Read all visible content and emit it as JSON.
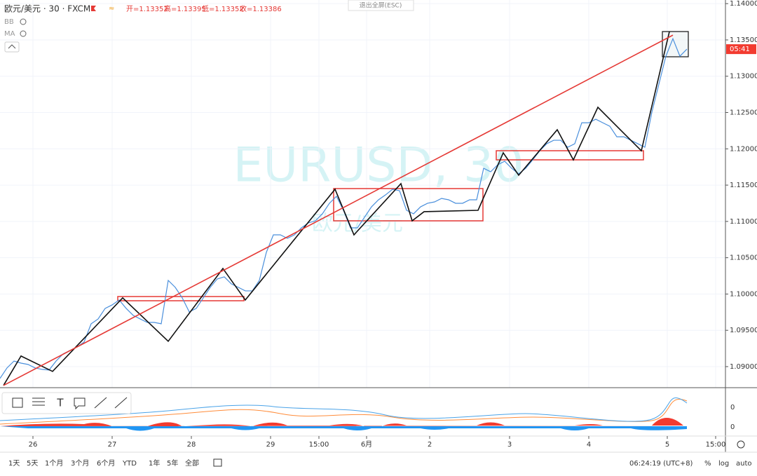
{
  "header": {
    "symbol": "欧元/美元 · 30 · FXCM",
    "ohlc": [
      "开=1.13352",
      "高=1.13395",
      "低=1.13352",
      "收=1.13386"
    ],
    "indicators": [
      "BB",
      "MA"
    ],
    "exit_fullscreen": "退出全屏(ESC)"
  },
  "watermark": {
    "line1": "EURUSD, 30",
    "line2": "欧元/美元"
  },
  "chart_data": {
    "type": "line",
    "series": [
      {
        "name": "price",
        "color": "#4a8fdc",
        "values": [
          1.08837,
          1.08982,
          1.09077,
          1.09048,
          1.0903,
          1.08982,
          1.08962,
          1.08953,
          1.09077,
          1.09175,
          1.09223,
          1.09271,
          1.09339,
          1.0959,
          1.09657,
          1.09802,
          1.0985,
          1.09918,
          1.09802,
          1.09706,
          1.09657,
          1.09609,
          1.09609,
          1.0959,
          1.10188,
          1.10092,
          1.09947,
          1.09754,
          1.09802,
          1.09947,
          1.10092,
          1.10208,
          1.10236,
          1.1014,
          1.10092,
          1.10043,
          1.10043,
          1.10188,
          1.10574,
          1.10815,
          1.10815,
          1.10767,
          1.10815,
          1.10912,
          1.1098,
          1.11008,
          1.11105,
          1.1125,
          1.11346,
          1.11153,
          1.10912,
          1.10912,
          1.11057,
          1.11201,
          1.11298,
          1.11365,
          1.11443,
          1.11423,
          1.11153,
          1.11105,
          1.11201,
          1.1125,
          1.11269,
          1.11317,
          1.11298,
          1.1125,
          1.1125,
          1.11298,
          1.11298,
          1.11732,
          1.11684,
          1.1178,
          1.11829,
          1.11732,
          1.11655,
          1.11732,
          1.11848,
          1.11973,
          1.1207,
          1.12118,
          1.12118,
          1.12022,
          1.1207,
          1.12359,
          1.12359,
          1.12408,
          1.12359,
          1.12311,
          1.12166,
          1.12166,
          1.12118,
          1.1207,
          1.12022,
          1.12504,
          1.1289,
          1.13276,
          1.13517,
          1.13276,
          1.13373
        ]
      },
      {
        "name": "zigzag",
        "color": "#111111",
        "x": [
          0.5,
          3,
          7.5,
          17.5,
          24,
          31.8,
          35,
          47.8,
          50.5,
          57.2,
          58.8,
          60.5,
          68.2,
          71.8,
          74,
          79.5,
          81.8,
          85.3,
          91.5,
          95.5
        ],
        "values": [
          1.08741,
          1.09146,
          1.08934,
          1.09947,
          1.09349,
          1.10352,
          1.09918,
          1.11443,
          1.10815,
          1.1152,
          1.11008,
          1.11134,
          1.11153,
          1.11945,
          1.11636,
          1.12263,
          1.11848,
          1.12572,
          1.11973,
          1.13614
        ]
      },
      {
        "name": "trend",
        "color": "#e53935",
        "x": [
          0.5,
          96
        ],
        "values": [
          1.08741,
          1.13566
        ]
      }
    ],
    "ylim": [
      1.0871,
      1.1405
    ],
    "yticks": [
      {
        "value": 1.09,
        "label": "1.09000"
      },
      {
        "value": 1.095,
        "label": "1.09500"
      },
      {
        "value": 1.1,
        "label": "1.10000"
      },
      {
        "value": 1.105,
        "label": "1.10500"
      },
      {
        "value": 1.11,
        "label": "1.11000"
      },
      {
        "value": 1.115,
        "label": "1.11500"
      },
      {
        "value": 1.12,
        "label": "1.12000"
      },
      {
        "value": 1.125,
        "label": "1.12500"
      },
      {
        "value": 1.13,
        "label": "1.13000"
      },
      {
        "value": 1.135,
        "label": "1.13500"
      },
      {
        "value": 1.14,
        "label": "1.14000"
      }
    ],
    "xlim": [
      0,
      103.5
    ],
    "xticks": [
      {
        "value": 4.7,
        "label": "26"
      },
      {
        "value": 16,
        "label": "27"
      },
      {
        "value": 27.3,
        "label": "28"
      },
      {
        "value": 38.6,
        "label": "29"
      },
      {
        "value": 45.5,
        "label": "15:00"
      },
      {
        "value": 52.3,
        "label": "6月"
      },
      {
        "value": 61.3,
        "label": "2"
      },
      {
        "value": 72.7,
        "label": "3"
      },
      {
        "value": 84,
        "label": "4"
      },
      {
        "value": 95.2,
        "label": "5"
      },
      {
        "value": 102.1,
        "label": "15:00"
      }
    ],
    "countdown": "05:41"
  },
  "lower_pane": {
    "labels": [
      "0",
      "0"
    ]
  },
  "toolbar": {
    "ranges": [
      "1天",
      "5天",
      "1个月",
      "3个月",
      "6个月",
      "YTD",
      "1年",
      "5年",
      "全部"
    ],
    "clock": "06:24:19 (UTC+8)",
    "options": [
      "%",
      "log",
      "auto"
    ]
  }
}
